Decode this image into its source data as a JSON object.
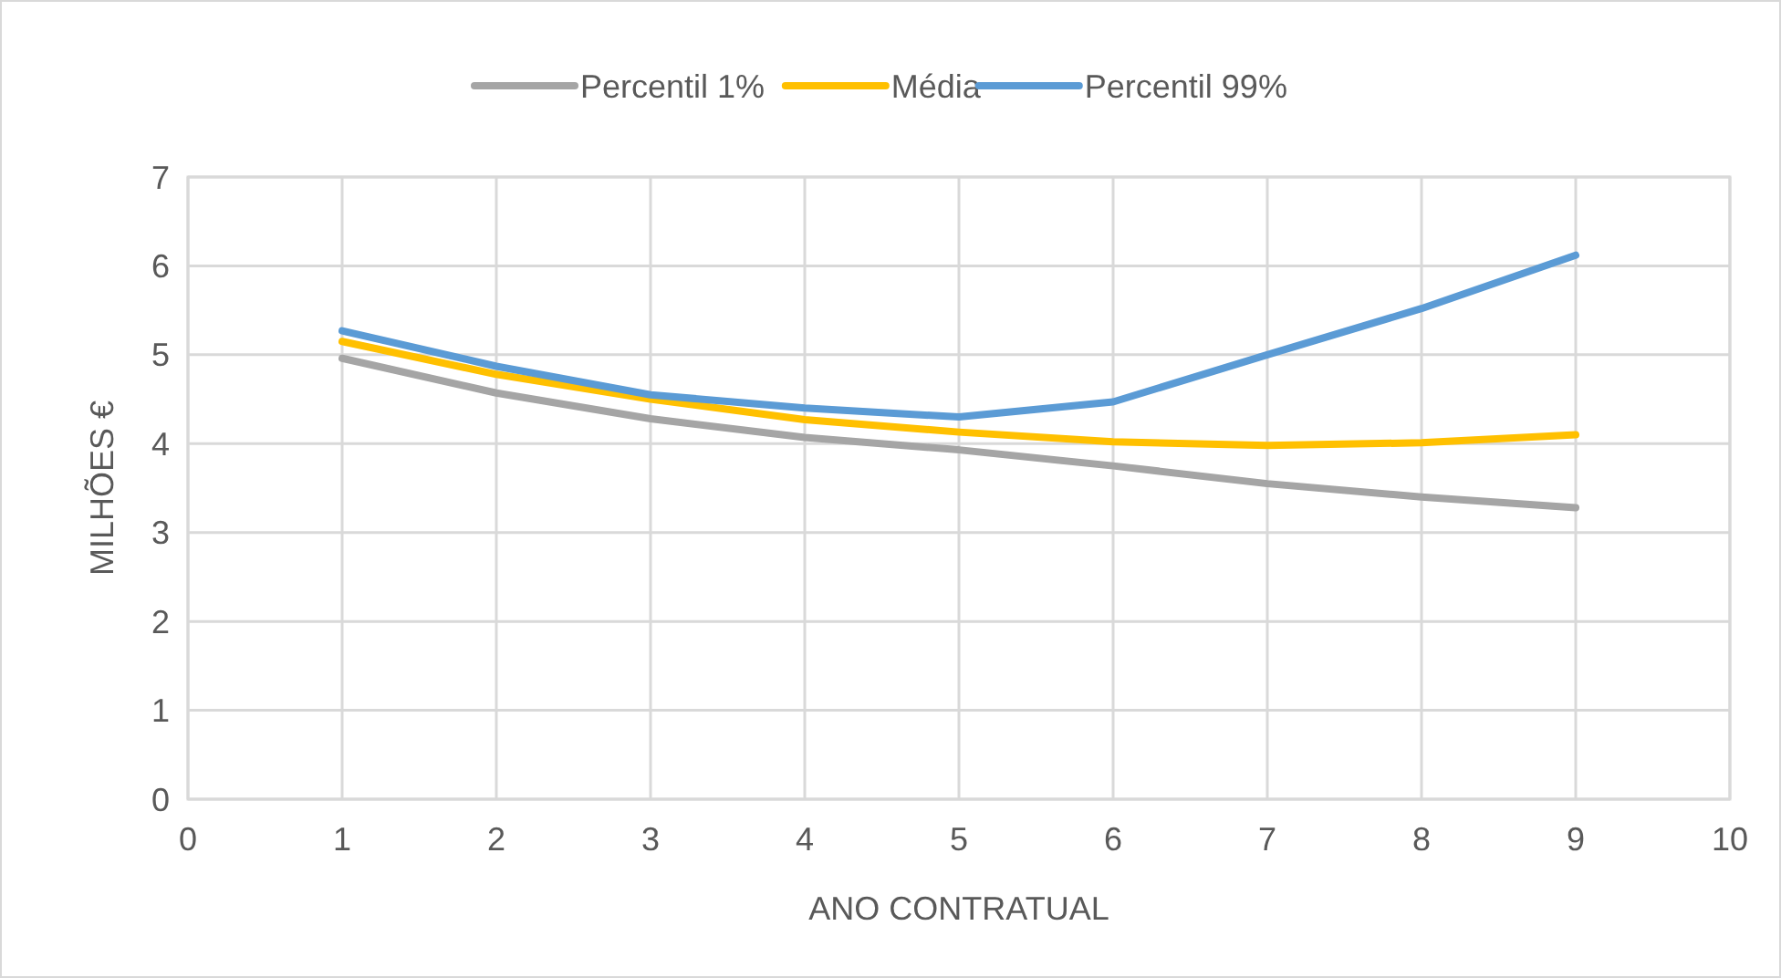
{
  "chart_data": {
    "type": "line",
    "xlabel": "ANO CONTRATUAL",
    "ylabel": "MILHÕES €",
    "x": [
      1,
      2,
      3,
      4,
      5,
      6,
      7,
      8,
      9
    ],
    "series": [
      {
        "name": "Percentil 1%",
        "color": "#a5a5a5",
        "values": [
          4.96,
          4.57,
          4.28,
          4.07,
          3.93,
          3.75,
          3.55,
          3.4,
          3.28
        ]
      },
      {
        "name": "Média",
        "color": "#ffc000",
        "values": [
          5.15,
          4.78,
          4.5,
          4.27,
          4.13,
          4.02,
          3.98,
          4.01,
          4.1
        ]
      },
      {
        "name": "Percentil 99%",
        "color": "#5b9bd5",
        "values": [
          5.27,
          4.87,
          4.55,
          4.4,
          4.3,
          4.47,
          5.0,
          5.52,
          6.12
        ]
      }
    ],
    "xlim": [
      0,
      10
    ],
    "xticks": [
      0,
      1,
      2,
      3,
      4,
      5,
      6,
      7,
      8,
      9,
      10
    ],
    "ylim": [
      0,
      7
    ],
    "yticks": [
      0,
      1,
      2,
      3,
      4,
      5,
      6,
      7
    ],
    "grid": true,
    "legend": "top",
    "marker": "none",
    "line_style": "solid"
  }
}
